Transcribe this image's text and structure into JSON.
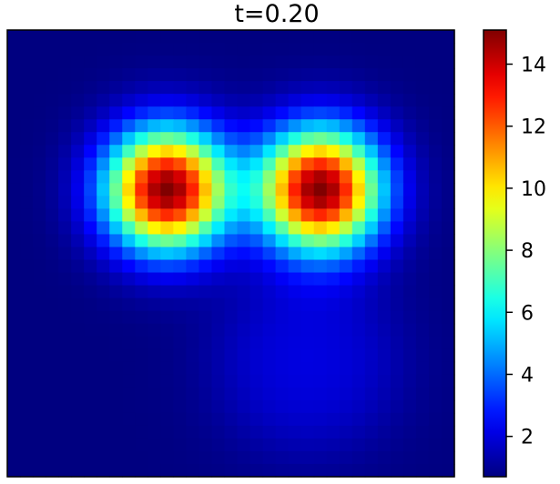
{
  "chart_data": {
    "type": "heatmap",
    "title": "t=0.20",
    "grid": false,
    "colormap": "jet",
    "legend_placement": "right",
    "colorbar": {
      "vmin": 0.7,
      "vmax": 15.1,
      "ticks": [
        2,
        4,
        6,
        8,
        10,
        12,
        14
      ],
      "tick_labels": [
        "2",
        "4",
        "6",
        "8",
        "10",
        "12",
        "14"
      ]
    },
    "field": {
      "grid_size": [
        35,
        35
      ],
      "background": 0.7,
      "blobs": [
        {
          "cx": 12,
          "cy": 12,
          "amp": 14.4,
          "sigma": 3.3
        },
        {
          "cx": 24,
          "cy": 12,
          "amp": 14.4,
          "sigma": 3.3
        },
        {
          "cx": 23,
          "cy": 25.5,
          "amp": 1.4,
          "radius": 6.5,
          "edge": 1.8
        }
      ]
    }
  }
}
